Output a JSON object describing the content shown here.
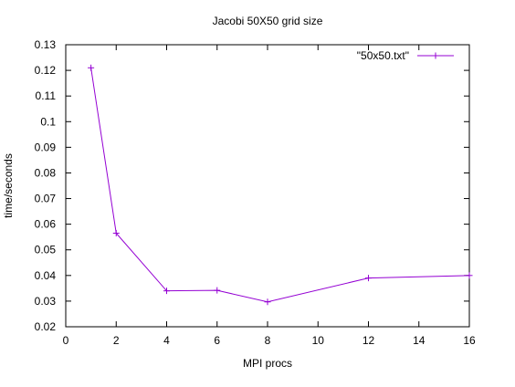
{
  "chart_data": {
    "type": "line",
    "title": "Jacobi 50X50 grid size",
    "xlabel": "MPI procs",
    "ylabel": "time/seconds",
    "xlim": [
      0,
      16
    ],
    "ylim": [
      0.02,
      0.13
    ],
    "xticks": [
      0,
      2,
      4,
      6,
      8,
      10,
      12,
      14,
      16
    ],
    "yticks": [
      0.02,
      0.03,
      0.04,
      0.05,
      0.06,
      0.07,
      0.08,
      0.09,
      0.1,
      0.11,
      0.12,
      0.13
    ],
    "xtick_labels": [
      "0",
      "2",
      "4",
      "6",
      "8",
      "10",
      "12",
      "14",
      "16"
    ],
    "ytick_labels": [
      "0.02",
      "0.03",
      "0.04",
      "0.05",
      "0.06",
      "0.07",
      "0.08",
      "0.09",
      "0.1",
      "0.11",
      "0.12",
      "0.13"
    ],
    "grid": false,
    "legend_position": "top-right",
    "series": [
      {
        "name": "\"50x50.txt\"",
        "color": "#9400d3",
        "marker": "plus",
        "x": [
          1,
          2,
          4,
          6,
          8,
          12,
          16
        ],
        "y": [
          0.121,
          0.0565,
          0.034,
          0.0342,
          0.0297,
          0.039,
          0.04
        ]
      }
    ]
  }
}
